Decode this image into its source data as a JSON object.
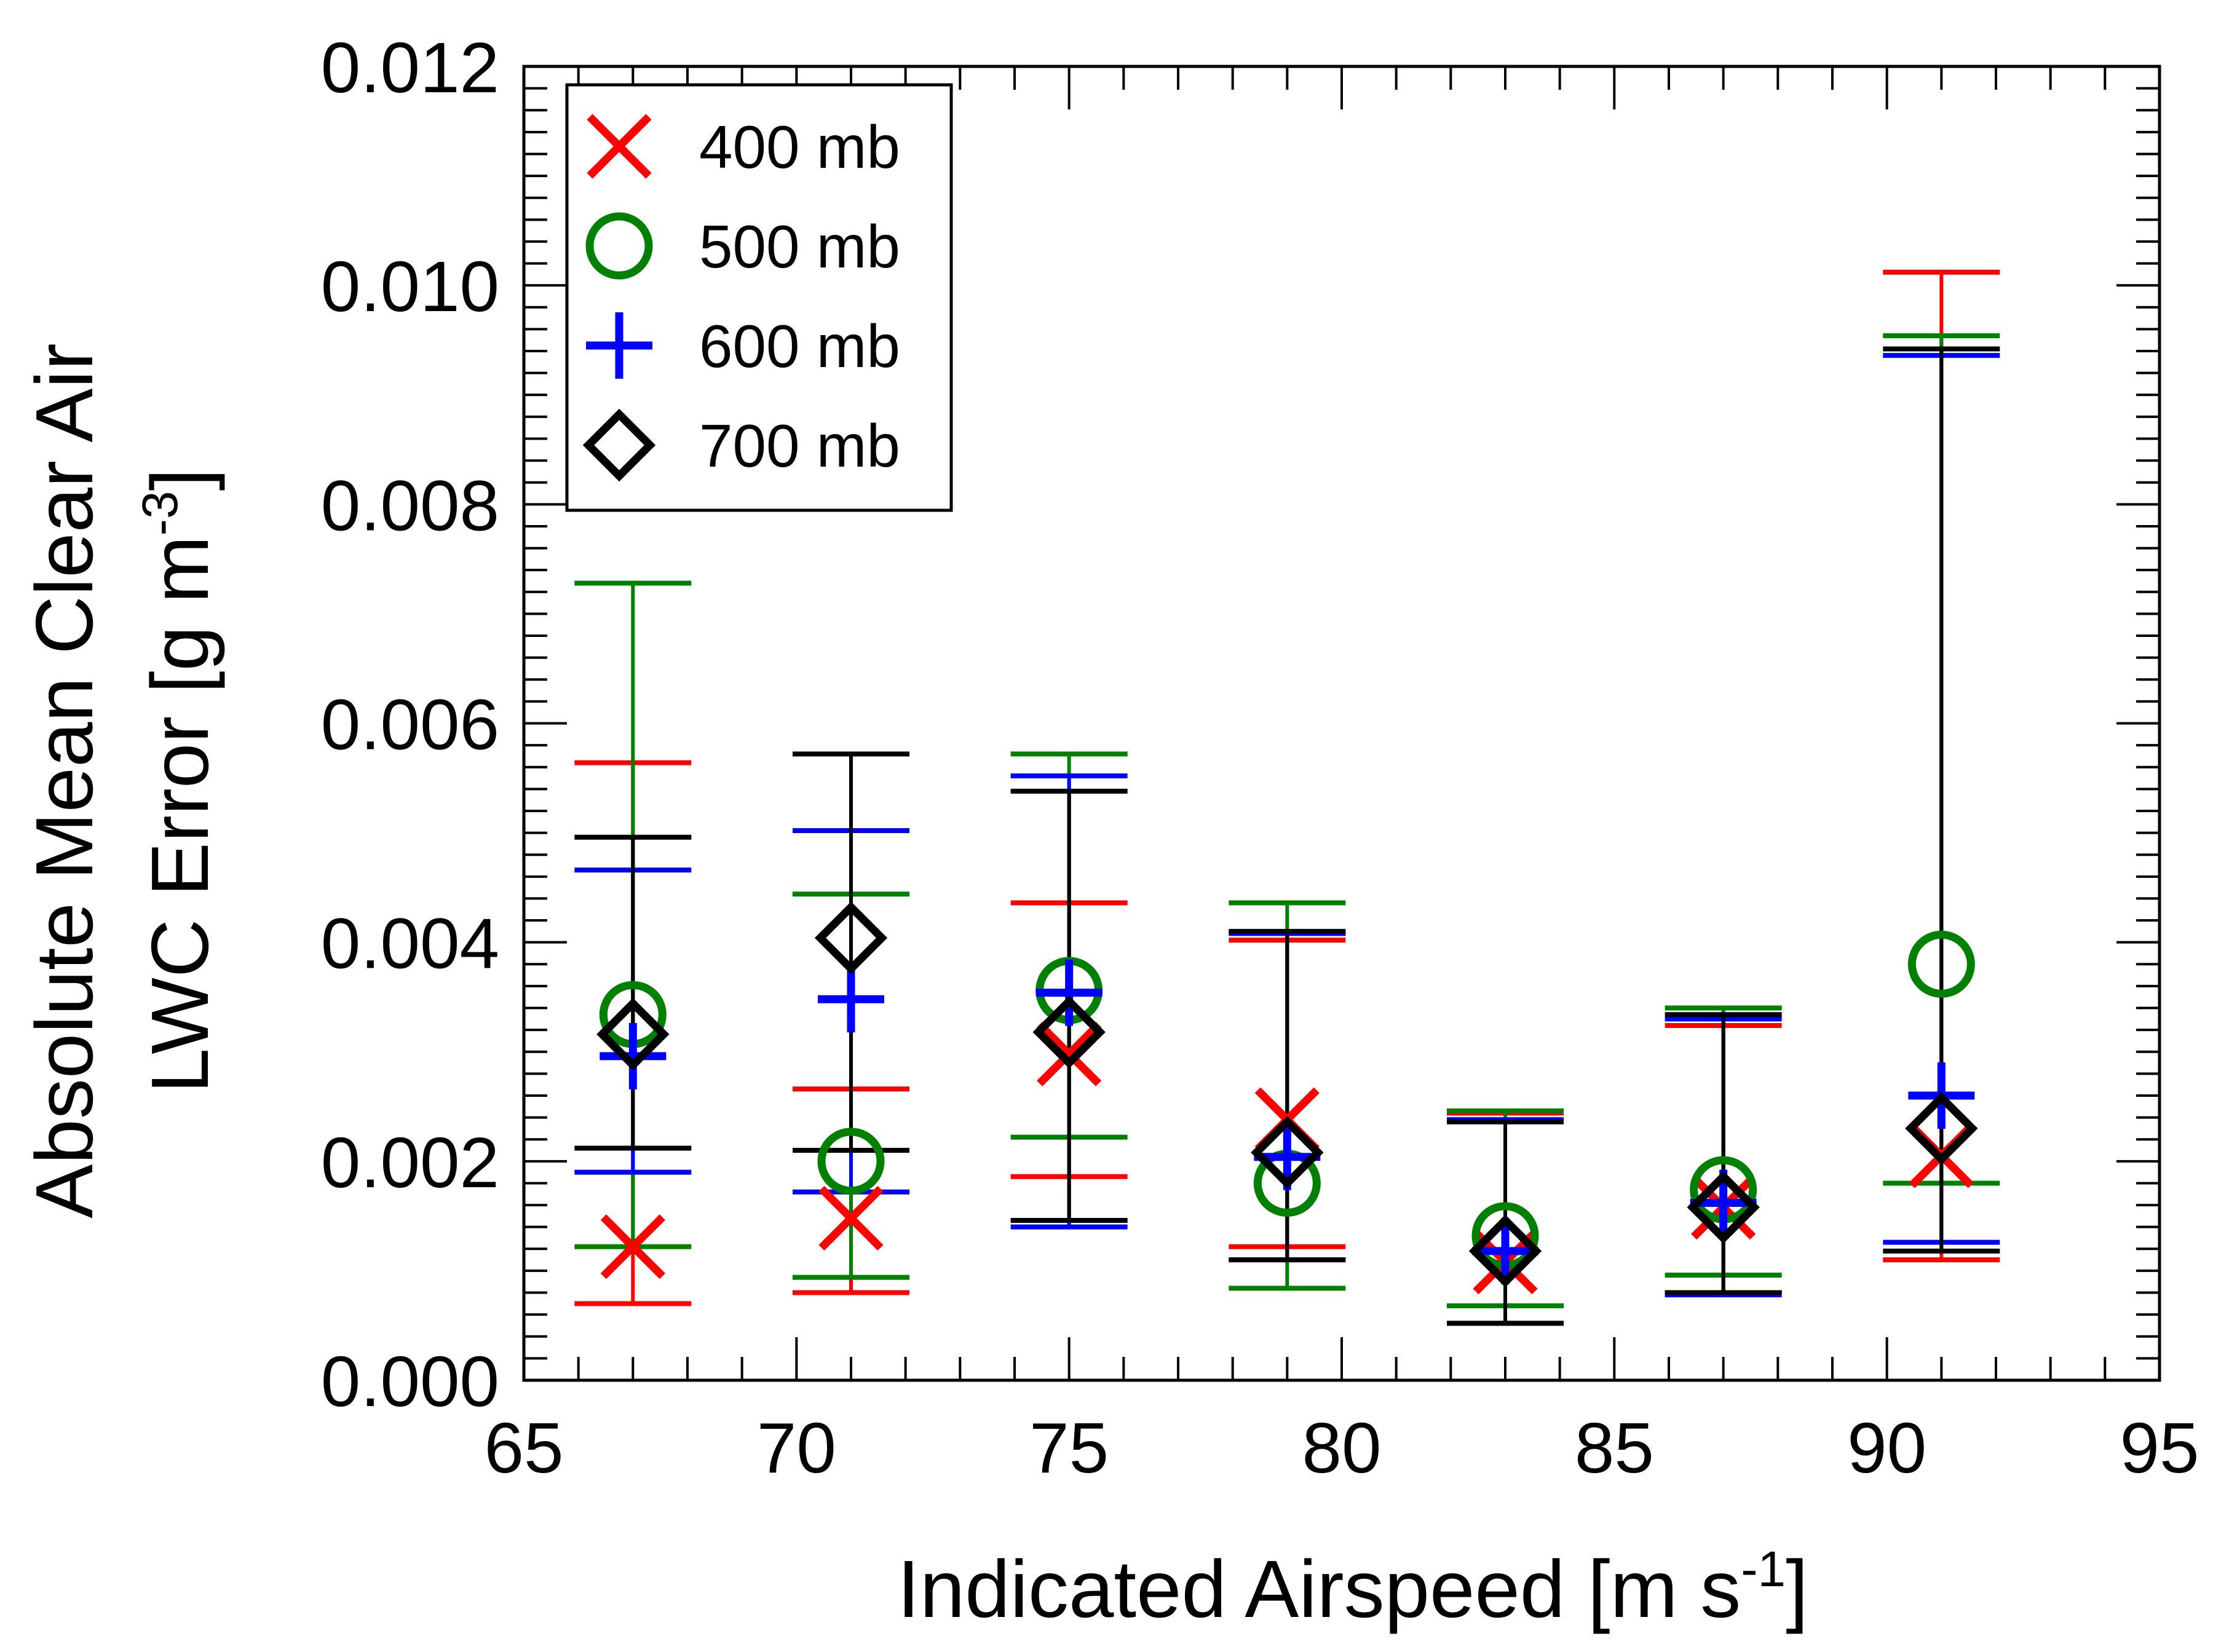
{
  "chart_data": {
    "type": "scatter",
    "xlabel": "Indicated Airspeed [m s",
    "xlabel_sup": "-1",
    "xlabel_end": "]",
    "ylabel_line1": "Absolute Mean Clear Air",
    "ylabel_line2": "LWC Error  [g m",
    "ylabel_sup": "-3",
    "ylabel_end": "]",
    "xlim": [
      65,
      95
    ],
    "ylim": [
      0,
      0.012
    ],
    "x_ticks": [
      65,
      70,
      75,
      80,
      85,
      90,
      95
    ],
    "x_tick_labels": [
      "65",
      "70",
      "75",
      "80",
      "85",
      "90",
      "95"
    ],
    "y_ticks": [
      0,
      0.002,
      0.004,
      0.006,
      0.008,
      0.01,
      0.012
    ],
    "y_tick_labels": [
      "0.000",
      "0.002",
      "0.004",
      "0.006",
      "0.008",
      "0.010",
      "0.012"
    ],
    "legend_position": "top-left",
    "series": [
      {
        "name": "400 mb",
        "marker": "x",
        "color": "#ff0000",
        "x": [
          67,
          71,
          75,
          79,
          83,
          87,
          91
        ],
        "y": [
          0.00122,
          0.00148,
          0.00298,
          0.00238,
          0.00108,
          0.00158,
          0.00205
        ],
        "upper": [
          0.00564,
          0.00266,
          0.00436,
          0.00402,
          0.00244,
          0.00324,
          0.01012
        ],
        "lower": [
          0.0007,
          0.0008,
          0.00186,
          0.00122,
          0.00052,
          0.0008,
          0.0011
        ]
      },
      {
        "name": "500 mb",
        "marker": "circle",
        "color": "#008000",
        "x": [
          67,
          71,
          75,
          79,
          83,
          87,
          91
        ],
        "y": [
          0.00334,
          0.002,
          0.00356,
          0.0018,
          0.00132,
          0.00174,
          0.0038
        ],
        "upper": [
          0.00728,
          0.00444,
          0.00572,
          0.00436,
          0.00246,
          0.0034,
          0.00954
        ],
        "lower": [
          0.00122,
          0.00094,
          0.00222,
          0.00084,
          0.00068,
          0.00096,
          0.0018
        ]
      },
      {
        "name": "600 mb",
        "marker": "plus",
        "color": "#0000ff",
        "x": [
          67,
          71,
          75,
          79,
          83,
          87,
          91
        ],
        "y": [
          0.00296,
          0.00348,
          0.00354,
          0.00204,
          0.00118,
          0.00162,
          0.0026
        ],
        "upper": [
          0.00466,
          0.00502,
          0.00552,
          0.00408,
          0.00238,
          0.0033,
          0.00936
        ],
        "lower": [
          0.0019,
          0.00172,
          0.0014,
          0.0011,
          0.00052,
          0.00078,
          0.00126
        ]
      },
      {
        "name": "700 mb",
        "marker": "diamond",
        "color": "#000000",
        "x": [
          67,
          71,
          75,
          79,
          83,
          87,
          91
        ],
        "y": [
          0.00316,
          0.00404,
          0.00318,
          0.00208,
          0.00118,
          0.00158,
          0.0023
        ],
        "upper": [
          0.00496,
          0.00572,
          0.00538,
          0.0041,
          0.00236,
          0.00334,
          0.00942
        ],
        "lower": [
          0.00212,
          0.0021,
          0.00146,
          0.0011,
          0.00052,
          0.0008,
          0.00118
        ]
      }
    ]
  }
}
